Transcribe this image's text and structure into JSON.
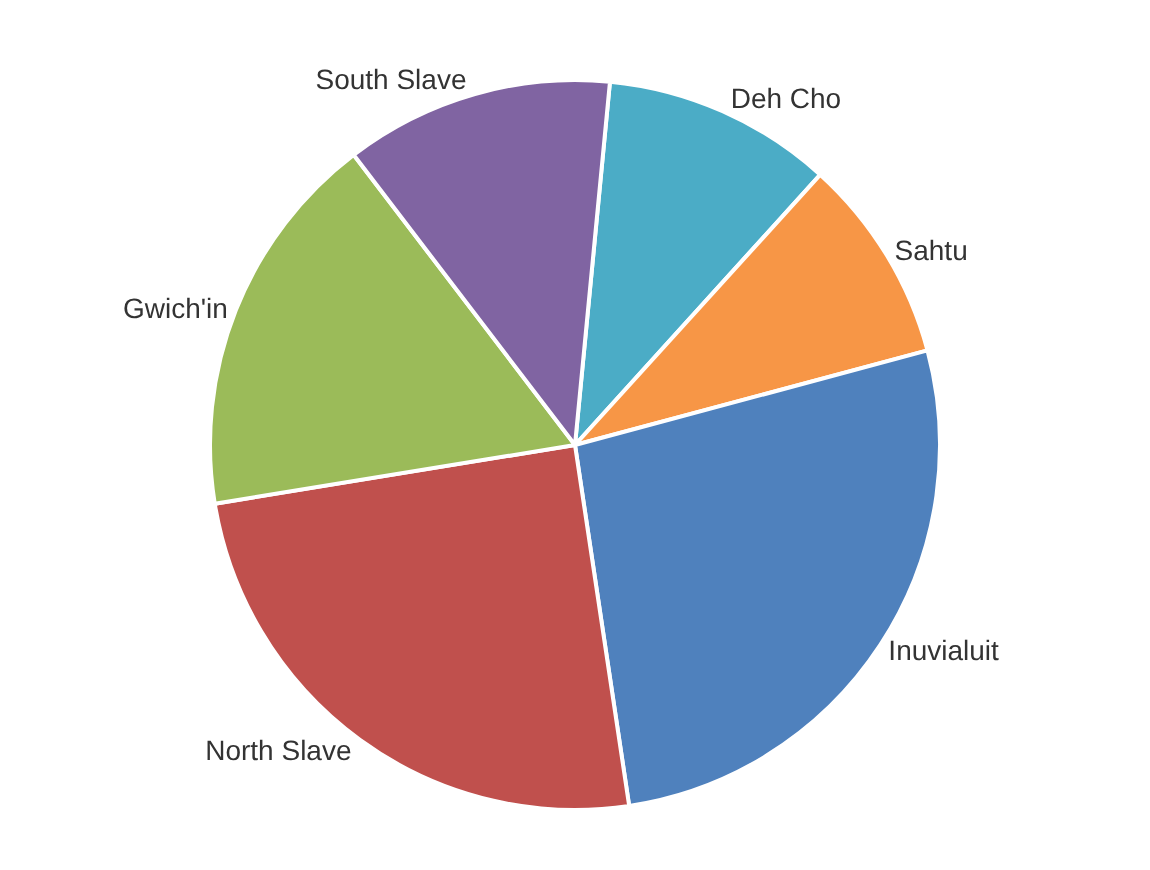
{
  "chart_data": {
    "type": "pie",
    "categories": [
      "Deh Cho",
      "Sahtu",
      "Inuvialuit",
      "North Slave",
      "Gwich'in",
      "South Slave"
    ],
    "values": [
      10.2,
      9.1,
      26.8,
      24.8,
      17.2,
      11.9
    ],
    "colors": [
      "#4bacc6",
      "#f79646",
      "#4f81bd",
      "#c0504d",
      "#9bbb59",
      "#8064a2"
    ],
    "legend": false
  }
}
